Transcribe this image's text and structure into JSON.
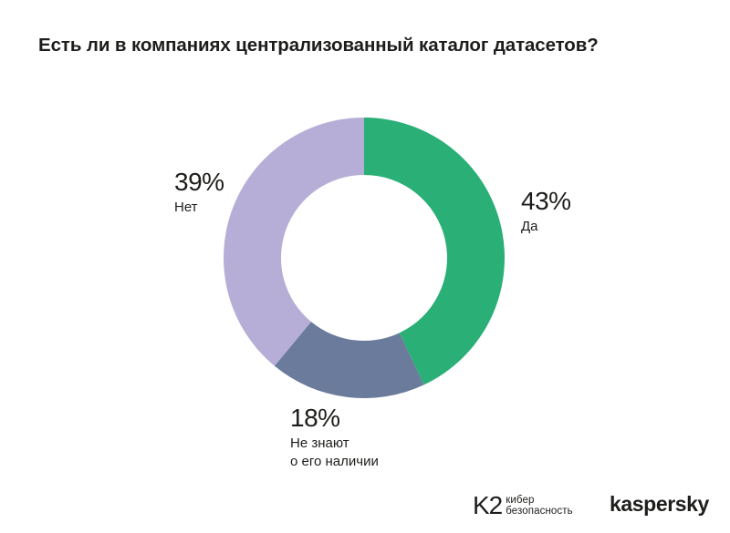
{
  "chart_data": {
    "type": "pie",
    "donut": true,
    "title": "Есть ли в компаниях централизованный каталог датасетов?",
    "start": "top",
    "direction": "clockwise",
    "slices": [
      {
        "value": 43,
        "label": "43%",
        "name_lines": [
          "Да"
        ],
        "color": "#2aaf76"
      },
      {
        "value": 18,
        "label": "18%",
        "name_lines": [
          "Не знают",
          "о его наличии"
        ],
        "color": "#6a7b9b"
      },
      {
        "value": 39,
        "label": "39%",
        "name_lines": [
          "Нет"
        ],
        "color": "#b6aed6"
      }
    ]
  },
  "footer": {
    "k2_mark": "K2",
    "k2_line1": "кибер",
    "k2_line2": "безопасность",
    "kaspersky": "kaspersky"
  }
}
